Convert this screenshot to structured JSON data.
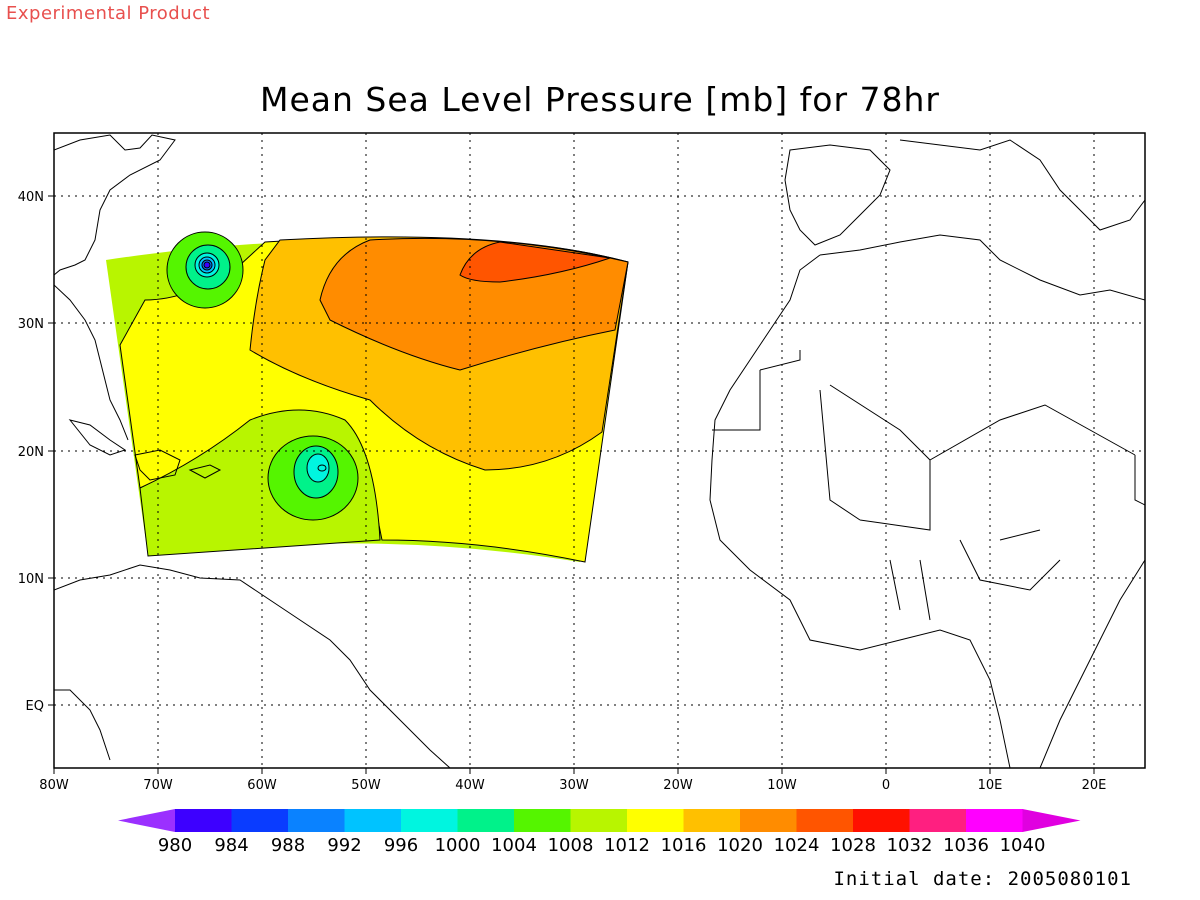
{
  "header": {
    "experimental_label": "Experimental Product",
    "title": "Mean Sea Level Pressure [mb] for 78hr"
  },
  "axes": {
    "x_ticks": [
      "80W",
      "70W",
      "60W",
      "50W",
      "40W",
      "30W",
      "20W",
      "10W",
      "0",
      "10E",
      "20E"
    ],
    "y_ticks": [
      "40N",
      "30N",
      "20N",
      "10N",
      "EQ"
    ]
  },
  "colorbar": {
    "labels": [
      "980",
      "984",
      "988",
      "992",
      "996",
      "1000",
      "1004",
      "1008",
      "1012",
      "1016",
      "1020",
      "1024",
      "1028",
      "1032",
      "1036",
      "1040"
    ],
    "colors": [
      "#9b30ff",
      "#3d00ff",
      "#0a3cff",
      "#0a82ff",
      "#00c3ff",
      "#00f5e0",
      "#00f28a",
      "#55f500",
      "#b8f500",
      "#ffff00",
      "#ffc000",
      "#ff8c00",
      "#ff5500",
      "#ff1100",
      "#ff1f80",
      "#ff00ff",
      "#e000e0"
    ]
  },
  "footer": {
    "initial_date": "Initial date: 2005080101"
  }
}
